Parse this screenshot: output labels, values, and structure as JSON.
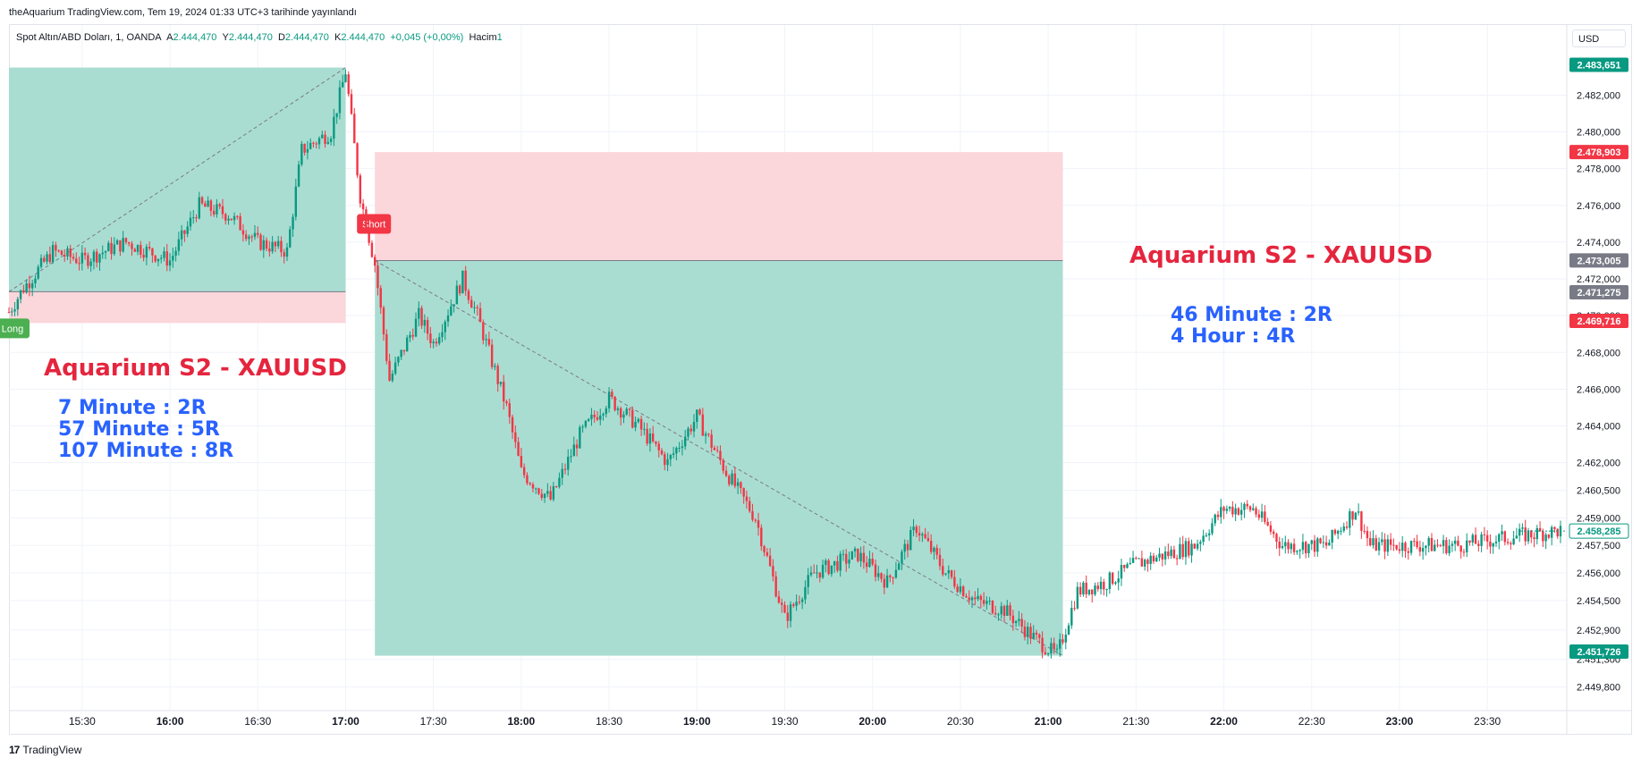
{
  "header": {
    "published": "theAquarium TradingView.com, Tem 19, 2024 01:33 UTC+3 tarihinde yayınlandı",
    "symbol": "Spot Altın/ABD Doları, 1, OANDA",
    "o_label": "A",
    "o_value": "2.444,470",
    "h_label": "Y",
    "h_value": "2.444,470",
    "l_label": "D",
    "l_value": "2.444,470",
    "c_label": "K",
    "c_value": "2.444,470",
    "change": "+0,045 (+0,00%)",
    "volume_label": "Hacim",
    "volume_value": "1"
  },
  "currency_button": "USD",
  "branding": {
    "logo": "17",
    "text": "TradingView"
  },
  "colors": {
    "up": "#089981",
    "down": "#f23645",
    "profit_zone": "#a5dbd0",
    "loss_zone": "#fbd6da",
    "accent_red": "#e5253e",
    "accent_blue": "#2962ff"
  },
  "annotations": {
    "left_title": "Aquarium S2 - XAUUSD",
    "left_lines": [
      "7 Minute : 2R",
      "57 Minute : 5R",
      "107 Minute : 8R"
    ],
    "right_title": "Aquarium S2 - XAUUSD",
    "right_lines": [
      "46 Minute : 2R",
      "4 Hour : 4R"
    ]
  },
  "chart_data": {
    "type": "candlestick",
    "title": "Spot Altın/ABD Doları, 1, OANDA",
    "xlabel": "",
    "ylabel": "",
    "ylim": [
      2449.0,
      2484.5
    ],
    "x_range": [
      "15:05",
      "23:55"
    ],
    "grid": true,
    "y_ticks": [
      "2.482,000",
      "2.480,000",
      "2.478,000",
      "2.476,000",
      "2.474,000",
      "2.472,000",
      "2.470,000",
      "2.468,000",
      "2.466,000",
      "2.464,000",
      "2.462,000",
      "2.460,500",
      "2.459,000",
      "2.457,500",
      "2.456,000",
      "2.454,500",
      "2.452,900",
      "2.451,300",
      "2.449,800"
    ],
    "x_ticks": [
      "15:30",
      "16:00",
      "16:30",
      "17:00",
      "17:30",
      "18:00",
      "18:30",
      "19:00",
      "19:30",
      "20:00",
      "20:30",
      "21:00",
      "21:30",
      "22:00",
      "22:30",
      "23:00",
      "23:30"
    ],
    "price_path": [
      {
        "t": "15:05",
        "p": 2470.2
      },
      {
        "t": "15:10",
        "p": 2471.5
      },
      {
        "t": "15:20",
        "p": 2473.5
      },
      {
        "t": "15:30",
        "p": 2473.0
      },
      {
        "t": "15:45",
        "p": 2474.0
      },
      {
        "t": "16:00",
        "p": 2473.0
      },
      {
        "t": "16:10",
        "p": 2476.0
      },
      {
        "t": "16:20",
        "p": 2475.5
      },
      {
        "t": "16:30",
        "p": 2474.0
      },
      {
        "t": "16:40",
        "p": 2473.5
      },
      {
        "t": "16:45",
        "p": 2479.0
      },
      {
        "t": "16:55",
        "p": 2480.0
      },
      {
        "t": "17:00",
        "p": 2483.3
      },
      {
        "t": "17:05",
        "p": 2476.5
      },
      {
        "t": "17:10",
        "p": 2472.8
      },
      {
        "t": "17:15",
        "p": 2466.5
      },
      {
        "t": "17:25",
        "p": 2470.0
      },
      {
        "t": "17:30",
        "p": 2468.5
      },
      {
        "t": "17:40",
        "p": 2472.0
      },
      {
        "t": "17:45",
        "p": 2470.0
      },
      {
        "t": "17:55",
        "p": 2465.0
      },
      {
        "t": "18:00",
        "p": 2461.5
      },
      {
        "t": "18:10",
        "p": 2460.0
      },
      {
        "t": "18:20",
        "p": 2463.5
      },
      {
        "t": "18:30",
        "p": 2465.5
      },
      {
        "t": "18:40",
        "p": 2464.0
      },
      {
        "t": "18:50",
        "p": 2462.0
      },
      {
        "t": "19:00",
        "p": 2464.5
      },
      {
        "t": "19:10",
        "p": 2461.5
      },
      {
        "t": "19:20",
        "p": 2459.0
      },
      {
        "t": "19:30",
        "p": 2453.5
      },
      {
        "t": "19:40",
        "p": 2456.0
      },
      {
        "t": "19:55",
        "p": 2457.0
      },
      {
        "t": "20:05",
        "p": 2455.5
      },
      {
        "t": "20:15",
        "p": 2458.5
      },
      {
        "t": "20:25",
        "p": 2456.0
      },
      {
        "t": "20:35",
        "p": 2454.5
      },
      {
        "t": "20:45",
        "p": 2454.0
      },
      {
        "t": "20:55",
        "p": 2452.5
      },
      {
        "t": "21:03",
        "p": 2451.5
      },
      {
        "t": "21:10",
        "p": 2455.0
      },
      {
        "t": "21:20",
        "p": 2455.5
      },
      {
        "t": "21:30",
        "p": 2456.5
      },
      {
        "t": "21:40",
        "p": 2457.0
      },
      {
        "t": "21:50",
        "p": 2457.5
      },
      {
        "t": "22:00",
        "p": 2459.5
      },
      {
        "t": "22:10",
        "p": 2459.5
      },
      {
        "t": "22:20",
        "p": 2457.5
      },
      {
        "t": "22:35",
        "p": 2457.5
      },
      {
        "t": "22:45",
        "p": 2459.5
      },
      {
        "t": "22:50",
        "p": 2457.5
      },
      {
        "t": "23:00",
        "p": 2457.5
      },
      {
        "t": "23:20",
        "p": 2457.5
      },
      {
        "t": "23:40",
        "p": 2458.0
      },
      {
        "t": "23:55",
        "p": 2458.3
      }
    ],
    "long_position": {
      "label": "Long",
      "start": "15:05",
      "end": "17:00",
      "entry": 2471.3,
      "stop": 2469.6,
      "target": 2483.5
    },
    "short_position": {
      "label": "Short",
      "start": "17:10",
      "end": "21:05",
      "entry": 2473.0,
      "stop": 2478.9,
      "target": 2451.5
    },
    "price_labels": [
      {
        "value": 2483.651,
        "text": "2.483,651",
        "color": "#089981"
      },
      {
        "value": 2478.903,
        "text": "2.478,903",
        "color": "#f23645"
      },
      {
        "value": 2473.005,
        "text": "2.473,005",
        "color": "#787b86"
      },
      {
        "value": 2471.275,
        "text": "2.471,275",
        "color": "#787b86"
      },
      {
        "value": 2469.716,
        "text": "2.469,716",
        "color": "#f23645"
      },
      {
        "value": 2458.285,
        "text": "2.458,285",
        "color": "#ffffff",
        "text_color": "#089981"
      },
      {
        "value": 2451.726,
        "text": "2.451,726",
        "color": "#089981"
      }
    ]
  }
}
